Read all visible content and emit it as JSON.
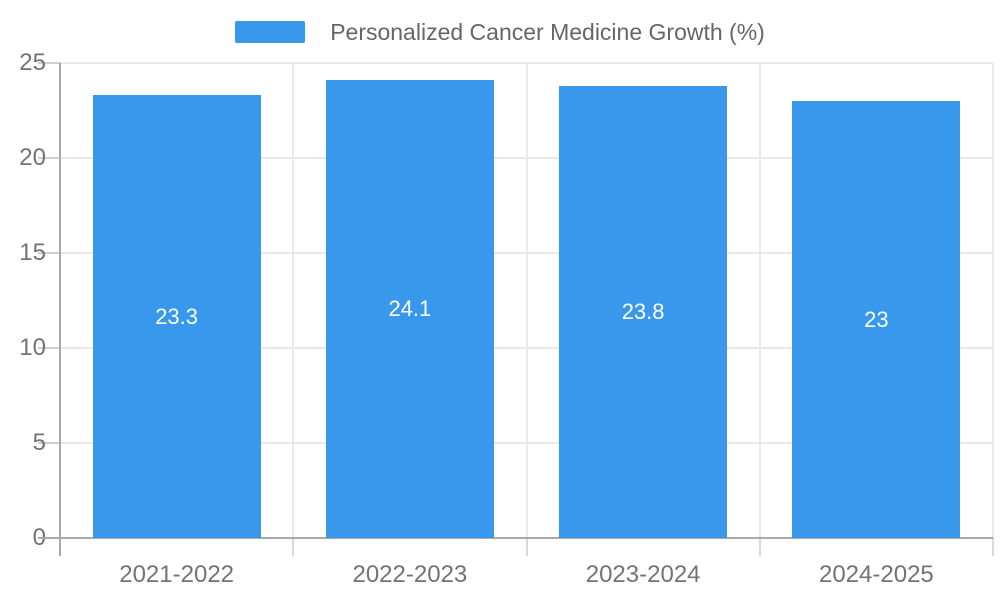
{
  "chart_data": {
    "type": "bar",
    "title": "Personalized Cancer Medicine Growth (%)",
    "categories": [
      "2021-2022",
      "2022-2023",
      "2023-2024",
      "2024-2025"
    ],
    "values": [
      23.3,
      24.1,
      23.8,
      23
    ],
    "value_labels": [
      "23.3",
      "24.1",
      "23.8",
      "23"
    ],
    "xlabel": "",
    "ylabel": "",
    "ylim": [
      0,
      25
    ],
    "yticks": [
      0,
      5,
      10,
      15,
      20,
      25
    ],
    "grid": true,
    "legend_position": "top-center",
    "colors": {
      "bar": "#3899ec",
      "grid_line": "#e9e9e9",
      "boundary_tick": "#d9d9d9",
      "axis_line": "#a9a9a9",
      "tick_text": "#737373",
      "legend_text": "#666666",
      "data_label": "#ffffff",
      "background": "#ffffff"
    }
  }
}
